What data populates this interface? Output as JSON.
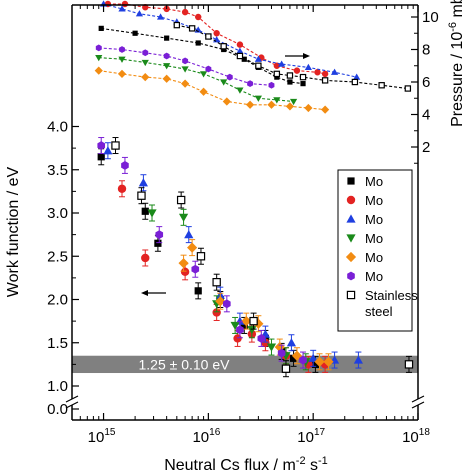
{
  "chart_data": {
    "type": "scatter",
    "xlabel": "Neutral Cs flux / m",
    "xlabel_sup": "-2",
    "xlabel_tail": " s",
    "xlabel_sup2": "-1",
    "ylabel": "Work function / eV",
    "ylabel_right": "Pressure / 10",
    "ylabel_right_sup": "-6",
    "ylabel_right_tail": " mbar",
    "x_scale": "log",
    "x_range": [
      500000000000000.0,
      1e+18
    ],
    "x_ticks": [
      {
        "value": 1000000000000000.0,
        "base": "10",
        "exp": "15"
      },
      {
        "value": 1e+16,
        "base": "10",
        "exp": "16"
      },
      {
        "value": 1e+17,
        "base": "10",
        "exp": "17"
      },
      {
        "value": 1e+18,
        "base": "10",
        "exp": "18"
      }
    ],
    "y_range": [
      0,
      4.6
    ],
    "y_break": [
      0.1,
      0.85
    ],
    "y_ticks": [
      "0.0",
      "1.0",
      "1.5",
      "2.0",
      "2.5",
      "3.0",
      "3.5",
      "4.0"
    ],
    "y_right_range": [
      0,
      11
    ],
    "y_right_ticks": [
      "2",
      "4",
      "6",
      "8",
      "10"
    ],
    "band": {
      "center": 1.25,
      "half_width": 0.1,
      "label": "1.25 ± 0.10 eV",
      "color": "#808080"
    },
    "arrows": [
      {
        "points_to": "right",
        "series_axis": "pressure"
      },
      {
        "points_to": "left",
        "series_axis": "work_function"
      }
    ],
    "legend": {
      "placement": "center-right"
    },
    "series": [
      {
        "name": "Mo",
        "marker": "square",
        "color": "#000000",
        "work_function": [
          [
            950000000000000.0,
            3.65
          ],
          [
            2500000000000000.0,
            3.02
          ],
          [
            3300000000000000.0,
            2.65
          ],
          [
            8000000000000000.0,
            2.1
          ],
          [
            1.3e+16,
            2.0
          ],
          [
            2.2e+16,
            1.7
          ],
          [
            3.5e+16,
            1.55
          ],
          [
            5e+16,
            1.4
          ],
          [
            6.5e+16,
            1.32
          ],
          [
            1.05e+17,
            1.25
          ]
        ],
        "pressure": [
          [
            950000000000000.0,
            9.3
          ],
          [
            2000000000000000.0,
            9.0
          ],
          [
            4000000000000000.0,
            8.7
          ],
          [
            8000000000000000.0,
            8.4
          ],
          [
            1.4e+16,
            8.0
          ],
          [
            2.2e+16,
            7.4
          ],
          [
            3e+16,
            6.9
          ],
          [
            4.5e+16,
            6.3
          ],
          [
            6e+16,
            6.0
          ],
          [
            8e+16,
            5.9
          ]
        ]
      },
      {
        "name": "Mo",
        "marker": "circle",
        "color": "#e32322",
        "work_function": [
          [
            1500000000000000.0,
            3.28
          ],
          [
            2500000000000000.0,
            2.48
          ],
          [
            6000000000000000.0,
            2.32
          ],
          [
            1.2e+16,
            1.85
          ],
          [
            1.9e+16,
            1.55
          ],
          [
            2.6e+16,
            1.6
          ],
          [
            3.5e+16,
            1.5
          ],
          [
            5.5e+16,
            1.35
          ],
          [
            9e+16,
            1.25
          ],
          [
            1.3e+17,
            1.25
          ]
        ],
        "pressure": [
          [
            1100000000000000.0,
            10.8
          ],
          [
            1600000000000000.0,
            10.8
          ],
          [
            2500000000000000.0,
            10.6
          ],
          [
            4000000000000000.0,
            10.5
          ],
          [
            6000000000000000.0,
            10.3
          ],
          [
            8000000000000000.0,
            10.0
          ],
          [
            1.2e+16,
            9.0
          ],
          [
            2e+16,
            8.3
          ],
          [
            3.2e+16,
            7.5
          ],
          [
            4.5e+16,
            7.0
          ],
          [
            7e+16,
            6.7
          ],
          [
            1.1e+17,
            6.6
          ],
          [
            1.3e+17,
            6.5
          ]
        ]
      },
      {
        "name": "Mo",
        "marker": "triangle-up",
        "color": "#1f3fe0",
        "work_function": [
          [
            1100000000000000.0,
            3.72
          ],
          [
            2400000000000000.0,
            3.35
          ],
          [
            6500000000000000.0,
            2.75
          ],
          [
            1.3e+16,
            2.05
          ],
          [
            2e+16,
            1.75
          ],
          [
            3.5e+16,
            1.6
          ],
          [
            6.2e+16,
            1.5
          ],
          [
            1e+17,
            1.32
          ],
          [
            1.6e+17,
            1.3
          ],
          [
            2.7e+17,
            1.3
          ]
        ],
        "pressure": [
          [
            1000000000000000.0,
            10.8
          ],
          [
            1500000000000000.0,
            10.5
          ],
          [
            2200000000000000.0,
            10.2
          ],
          [
            3500000000000000.0,
            10.0
          ],
          [
            5000000000000000.0,
            9.7
          ],
          [
            8000000000000000.0,
            9.2
          ],
          [
            1.2e+16,
            8.6
          ],
          [
            2e+16,
            7.9
          ],
          [
            3e+16,
            7.4
          ],
          [
            5e+16,
            7.1
          ],
          [
            9e+16,
            6.9
          ],
          [
            1.6e+17,
            6.6
          ],
          [
            2.6e+17,
            6.3
          ]
        ]
      },
      {
        "name": "Mo",
        "marker": "triangle-down",
        "color": "#1a8a1a",
        "work_function": [
          [
            2900000000000000.0,
            3.0
          ],
          [
            5800000000000000.0,
            2.95
          ],
          [
            1.2e+16,
            1.95
          ],
          [
            1.8e+16,
            1.7
          ],
          [
            2.6e+16,
            1.65
          ],
          [
            4e+16,
            1.45
          ],
          [
            5.5e+16,
            1.35
          ],
          [
            8.5e+16,
            1.28
          ]
        ],
        "pressure": [
          [
            900000000000000.0,
            7.5
          ],
          [
            1500000000000000.0,
            7.4
          ],
          [
            2500000000000000.0,
            7.2
          ],
          [
            4000000000000000.0,
            7.0
          ],
          [
            6000000000000000.0,
            6.8
          ],
          [
            9000000000000000.0,
            6.5
          ],
          [
            1.4e+16,
            6.0
          ],
          [
            2e+16,
            5.5
          ],
          [
            3e+16,
            5.0
          ],
          [
            4.5e+16,
            4.9
          ],
          [
            6.5e+16,
            4.8
          ]
        ]
      },
      {
        "name": "Mo",
        "marker": "diamond",
        "color": "#f28c12",
        "work_function": [
          [
            5800000000000000.0,
            2.42
          ],
          [
            7000000000000000.0,
            2.6
          ],
          [
            1.3e+16,
            1.98
          ],
          [
            2.3e+16,
            1.75
          ],
          [
            3e+16,
            1.72
          ],
          [
            4.8e+16,
            1.45
          ],
          [
            7e+16,
            1.35
          ],
          [
            1.15e+17,
            1.28
          ],
          [
            1.4e+17,
            1.28
          ]
        ],
        "pressure": [
          [
            900000000000000.0,
            6.7
          ],
          [
            1500000000000000.0,
            6.5
          ],
          [
            2500000000000000.0,
            6.3
          ],
          [
            4000000000000000.0,
            6.2
          ],
          [
            6000000000000000.0,
            5.9
          ],
          [
            9000000000000000.0,
            5.4
          ],
          [
            1.5e+16,
            4.8
          ],
          [
            2.5e+16,
            4.6
          ],
          [
            4e+16,
            4.6
          ],
          [
            6e+16,
            4.5
          ],
          [
            9e+16,
            4.4
          ],
          [
            1.3e+17,
            4.3
          ]
        ]
      },
      {
        "name": "Mo",
        "marker": "hexagon",
        "color": "#7a1fd6",
        "work_function": [
          [
            950000000000000.0,
            3.78
          ],
          [
            1600000000000000.0,
            3.55
          ],
          [
            3400000000000000.0,
            2.75
          ],
          [
            7500000000000000.0,
            2.35
          ],
          [
            1.5e+16,
            1.95
          ],
          [
            2e+16,
            1.65
          ],
          [
            3.2e+16,
            1.55
          ],
          [
            5e+16,
            1.38
          ],
          [
            8e+16,
            1.3
          ]
        ],
        "pressure": [
          [
            900000000000000.0,
            8.1
          ],
          [
            1500000000000000.0,
            8.0
          ],
          [
            2500000000000000.0,
            7.8
          ],
          [
            4000000000000000.0,
            7.6
          ],
          [
            6000000000000000.0,
            7.3
          ],
          [
            1e+16,
            6.8
          ],
          [
            1.6e+16,
            6.3
          ],
          [
            2.5e+16,
            5.9
          ],
          [
            4e+16,
            5.8
          ]
        ]
      },
      {
        "name": "Stainless\nsteel",
        "marker": "square-open",
        "color": "#000000",
        "work_function": [
          [
            1300000000000000.0,
            3.78
          ],
          [
            2300000000000000.0,
            3.2
          ],
          [
            5500000000000000.0,
            3.15
          ],
          [
            8500000000000000.0,
            2.5
          ],
          [
            1.2e+16,
            2.2
          ],
          [
            2.7e+16,
            1.75
          ],
          [
            5.5e+16,
            1.2
          ],
          [
            8.2e+17,
            1.25
          ]
        ],
        "pressure": [
          [
            5000000000000000.0,
            9.5
          ],
          [
            7000000000000000.0,
            9.3
          ],
          [
            1e+16,
            8.8
          ],
          [
            1.4e+16,
            8.2
          ],
          [
            2e+16,
            7.6
          ],
          [
            3e+16,
            7.0
          ],
          [
            4.5e+16,
            6.5
          ],
          [
            6e+16,
            6.4
          ],
          [
            8e+16,
            6.3
          ],
          [
            1.3e+17,
            6.1
          ],
          [
            2.5e+17,
            6.0
          ],
          [
            4.5e+17,
            5.8
          ],
          [
            8e+17,
            5.6
          ]
        ]
      }
    ]
  }
}
